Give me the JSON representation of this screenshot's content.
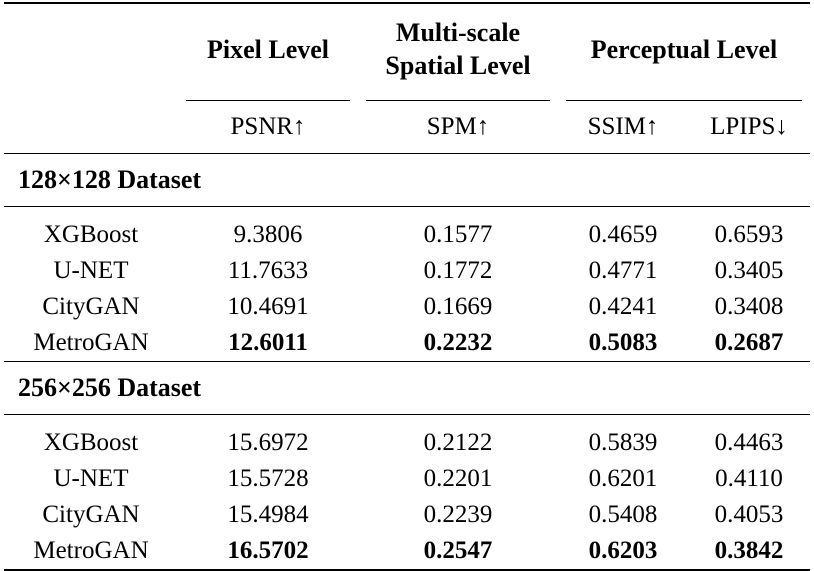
{
  "header": {
    "group_pixel": "Pixel Level",
    "group_multiscale_line1": "Multi-scale",
    "group_multiscale_line2": "Spatial Level",
    "group_perceptual": "Perceptual Level",
    "metric_psnr": "PSNR↑",
    "metric_spm": "SPM↑",
    "metric_ssim": "SSIM↑",
    "metric_lpips": "LPIPS↓"
  },
  "sections": [
    {
      "title": "128×128 Dataset",
      "rows": [
        {
          "method": "XGBoost",
          "psnr": "9.3806",
          "spm": "0.1577",
          "ssim": "0.4659",
          "lpips": "0.6593"
        },
        {
          "method": "U-NET",
          "psnr": "11.7633",
          "spm": "0.1772",
          "ssim": "0.4771",
          "lpips": "0.3405"
        },
        {
          "method": "CityGAN",
          "psnr": "10.4691",
          "spm": "0.1669",
          "ssim": "0.4241",
          "lpips": "0.3408"
        },
        {
          "method": "MetroGAN",
          "psnr": "12.6011",
          "spm": "0.2232",
          "ssim": "0.5083",
          "lpips": "0.2687"
        }
      ]
    },
    {
      "title": "256×256 Dataset",
      "rows": [
        {
          "method": "XGBoost",
          "psnr": "15.6972",
          "spm": "0.2122",
          "ssim": "0.5839",
          "lpips": "0.4463"
        },
        {
          "method": "U-NET",
          "psnr": "15.5728",
          "spm": "0.2201",
          "ssim": "0.6201",
          "lpips": "0.4110"
        },
        {
          "method": "CityGAN",
          "psnr": "15.4984",
          "spm": "0.2239",
          "ssim": "0.5408",
          "lpips": "0.4053"
        },
        {
          "method": "MetroGAN",
          "psnr": "16.5702",
          "spm": "0.2547",
          "ssim": "0.6203",
          "lpips": "0.3842"
        }
      ]
    }
  ]
}
